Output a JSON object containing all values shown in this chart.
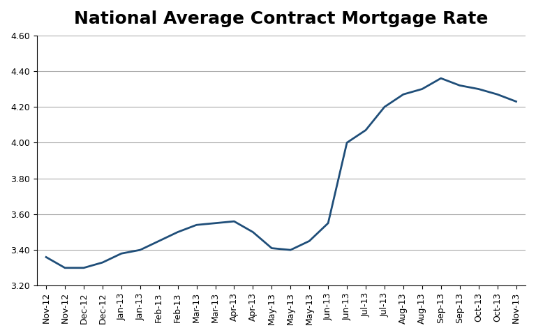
{
  "title": "National Average Contract Mortgage Rate",
  "x_labels": [
    "Nov-12",
    "Nov-12",
    "Dec-12",
    "Dec-12",
    "Jan-13",
    "Jan-13",
    "Feb-13",
    "Feb-13",
    "Mar-13",
    "Mar-13",
    "Apr-13",
    "Apr-13",
    "May-13",
    "May-13",
    "May-13",
    "Jun-13",
    "Jun-13",
    "Jul-13",
    "Jul-13",
    "Aug-13",
    "Aug-13",
    "Sep-13",
    "Sep-13",
    "Oct-13",
    "Oct-13",
    "Nov-13"
  ],
  "y_values": [
    3.36,
    3.3,
    3.3,
    3.33,
    3.38,
    3.4,
    3.45,
    3.5,
    3.54,
    3.55,
    3.56,
    3.5,
    3.41,
    3.4,
    3.45,
    3.55,
    4.0,
    4.07,
    4.2,
    4.27,
    4.3,
    4.36,
    4.32,
    4.3,
    4.27,
    4.23
  ],
  "line_color": "#1F4E79",
  "line_width": 2.0,
  "ylim": [
    3.2,
    4.6
  ],
  "yticks": [
    3.2,
    3.4,
    3.6,
    3.8,
    4.0,
    4.2,
    4.4,
    4.6
  ],
  "title_fontsize": 18,
  "title_fontweight": "bold",
  "tick_fontsize": 9,
  "grid_color": "#AAAAAA",
  "grid_linewidth": 0.8,
  "background_color": "#FFFFFF",
  "border_color": "#000000"
}
